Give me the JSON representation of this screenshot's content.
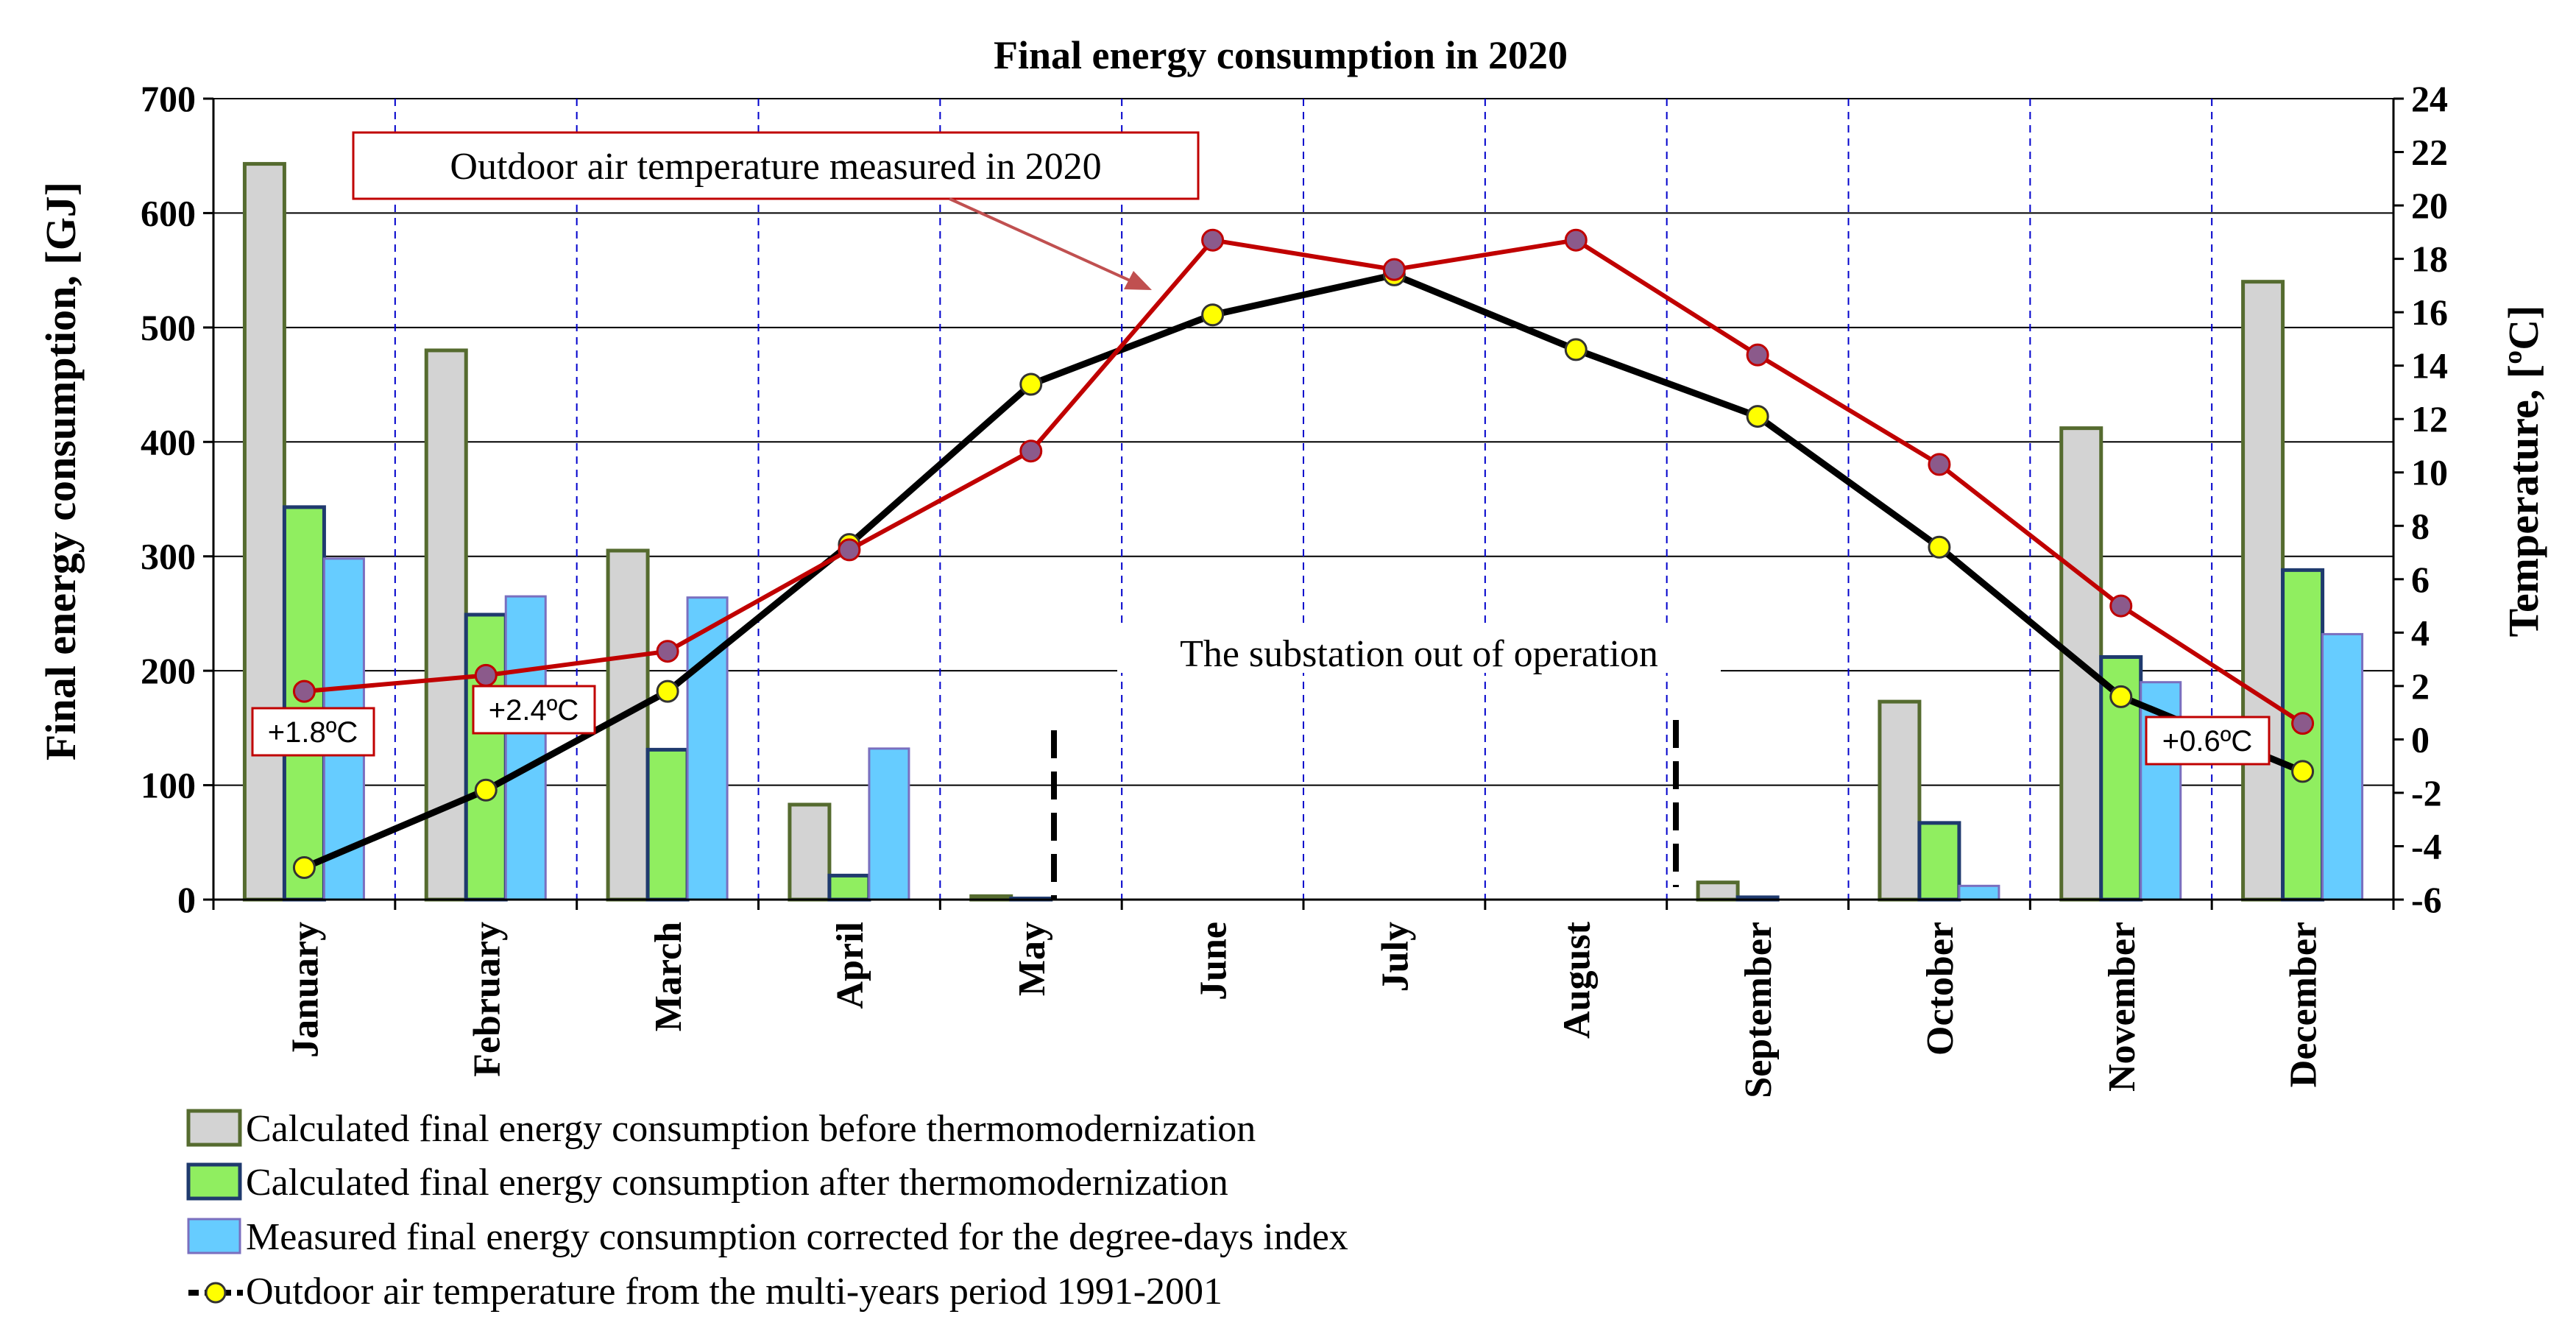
{
  "chart_data": {
    "type": "bar",
    "title": "Final energy consumption in 2020",
    "ylabel": "Final energy consumption,  [GJ]",
    "y2label": "Temperature, [ºC]",
    "ylim": [
      0,
      700
    ],
    "y2lim": [
      -6,
      24
    ],
    "yticks": [
      "0",
      "100",
      "200",
      "300",
      "400",
      "500",
      "600",
      "700"
    ],
    "y2ticks": [
      "-6",
      "-4",
      "-2",
      "0",
      "2",
      "4",
      "6",
      "8",
      "10",
      "12",
      "14",
      "16",
      "18",
      "20",
      "22",
      "24"
    ],
    "categories": [
      "January",
      "February",
      "March",
      "April",
      "May",
      "June",
      "July",
      "August",
      "September",
      "October",
      "November",
      "December"
    ],
    "series": [
      {
        "name": "Calculated final energy consumption before thermomodernization",
        "kind": "bar",
        "color": "#d3d3d3",
        "edge": "#556b2f",
        "values": [
          643,
          480,
          305,
          83,
          3,
          0,
          0,
          0,
          15,
          173,
          412,
          540
        ]
      },
      {
        "name": "Calculated final energy consumption after thermomodernization",
        "kind": "bar",
        "color": "#90ee60",
        "edge": "#1f3a6e",
        "values": [
          343,
          249,
          131,
          21,
          1,
          0,
          0,
          0,
          2,
          67,
          212,
          288
        ]
      },
      {
        "name": "Measured final energy consumption corrected for the degree-days index",
        "kind": "bar",
        "color": "#66ccff",
        "edge": "#7a6fbf",
        "values": [
          298,
          265,
          264,
          132,
          null,
          null,
          null,
          null,
          null,
          12,
          190,
          232
        ]
      },
      {
        "name": "Outdoor air temperature from the multi-years period 1991-2001",
        "kind": "line",
        "axis": "right",
        "color": "#000000",
        "marker": "#ffff00",
        "values": [
          -4.8,
          -1.9,
          1.8,
          7.3,
          13.3,
          15.9,
          17.4,
          14.6,
          12.1,
          7.2,
          1.6,
          -1.2
        ]
      },
      {
        "name": "Outdoor air temperature measured in 2020",
        "kind": "line",
        "axis": "right",
        "color": "#c00000",
        "marker": "#8b5a8b",
        "values": [
          1.8,
          2.4,
          3.3,
          7.1,
          10.8,
          18.7,
          17.6,
          18.7,
          14.4,
          10.3,
          5.0,
          0.6
        ]
      }
    ],
    "annotations": {
      "measured_callout": "Outdoor air temperature measured in 2020",
      "substation": "The substation out of operation",
      "jan_label": "+1.8ºC",
      "feb_label": "+2.4ºC",
      "dec_label": "+0.6ºC"
    },
    "colors": {
      "grid_h": "#000000",
      "grid_v": "#0000cc",
      "callout_border": "#c00000",
      "arrow": "#c05050"
    }
  }
}
